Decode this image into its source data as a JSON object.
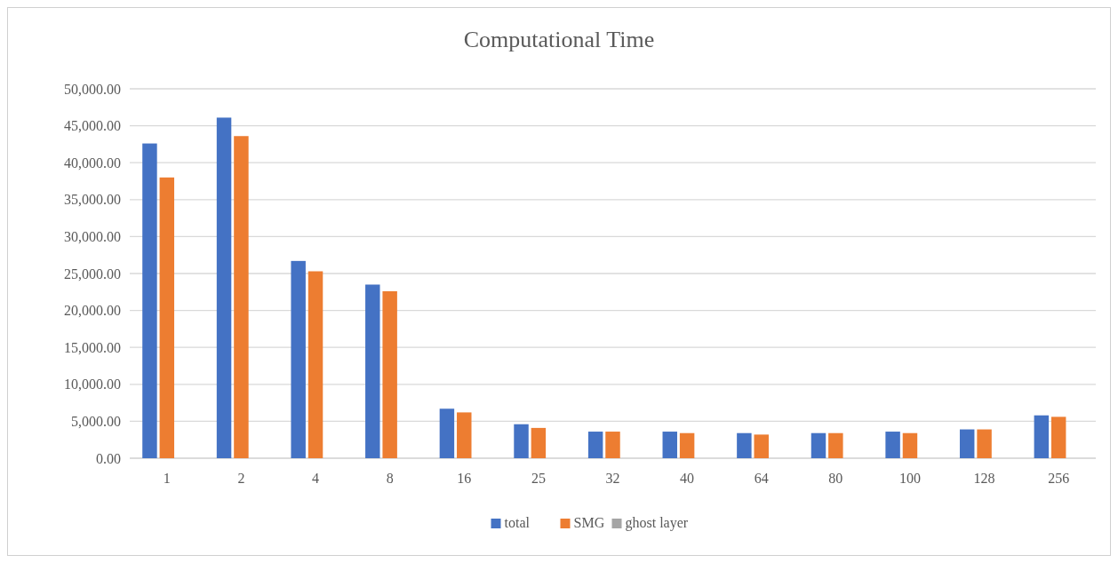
{
  "chart_data": {
    "type": "bar",
    "title": "Computational Time",
    "categories": [
      "1",
      "2",
      "4",
      "8",
      "16",
      "25",
      "32",
      "40",
      "64",
      "80",
      "100",
      "128",
      "256"
    ],
    "series": [
      {
        "name": "total",
        "color": "#4472c4",
        "values": [
          42600,
          46100,
          26700,
          23500,
          6700,
          4600,
          3600,
          3600,
          3400,
          3400,
          3600,
          3900,
          5800
        ]
      },
      {
        "name": "SMG",
        "color": "#ed7d31",
        "values": [
          38000,
          43600,
          25300,
          22600,
          6200,
          4100,
          3600,
          3400,
          3200,
          3400,
          3400,
          3900,
          5600
        ]
      },
      {
        "name": "ghost layer",
        "color": "#a5a5a5",
        "values": [
          null,
          null,
          null,
          null,
          null,
          null,
          null,
          null,
          null,
          null,
          null,
          null,
          null
        ]
      }
    ],
    "ylim": [
      0,
      50000
    ],
    "yticks": [
      {
        "value": 0,
        "label": "0.00"
      },
      {
        "value": 5000,
        "label": "5,000.00"
      },
      {
        "value": 10000,
        "label": "10,000.00"
      },
      {
        "value": 15000,
        "label": "15,000.00"
      },
      {
        "value": 20000,
        "label": "20,000.00"
      },
      {
        "value": 25000,
        "label": "25,000.00"
      },
      {
        "value": 30000,
        "label": "30,000.00"
      },
      {
        "value": 35000,
        "label": "35,000.00"
      },
      {
        "value": 40000,
        "label": "40,000.00"
      },
      {
        "value": 45000,
        "label": "45,000.00"
      },
      {
        "value": 50000,
        "label": "50,000.00"
      }
    ],
    "grid": "y",
    "legend": "bottom"
  }
}
